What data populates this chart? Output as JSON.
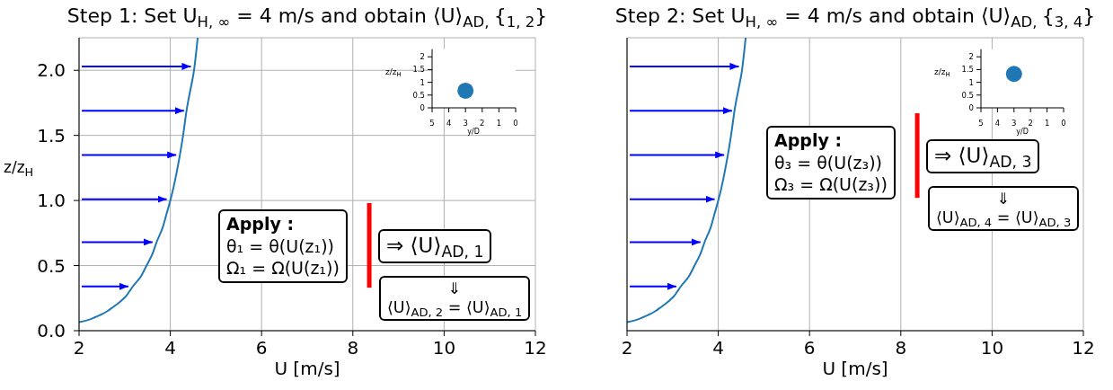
{
  "chart_data": [
    {
      "type": "line",
      "title": "Step 1: Set U$_{H, ∞}$ = 4 m/s and obtain ⟨U⟩$_{AD, }${$_{1, 2}$}",
      "xlabel": "U [m/s]",
      "ylabel": "z/z$_{H}$",
      "series": [
        {
          "color": "#1f77b4",
          "x": [
            2.0,
            2.18,
            2.33,
            2.46,
            2.62,
            2.72,
            2.82,
            2.94,
            3.04,
            3.1,
            3.18,
            3.36,
            3.48,
            3.62,
            3.7,
            3.84,
            3.92,
            4.0,
            4.07,
            4.13,
            4.21,
            4.28,
            4.36,
            4.44,
            4.52,
            4.57,
            4.6
          ],
          "values": [
            0.065,
            0.08,
            0.1,
            0.12,
            0.15,
            0.175,
            0.2,
            0.235,
            0.27,
            0.3,
            0.34,
            0.42,
            0.5,
            0.6,
            0.68,
            0.8,
            0.9,
            1.0,
            1.1,
            1.2,
            1.35,
            1.5,
            1.7,
            1.85,
            2.0,
            2.15,
            2.25
          ]
        },
        {
          "color": "#0000ff",
          "x": [
            2.06,
            3.08
          ],
          "values": [
            0.34,
            0.34
          ]
        },
        {
          "color": "#0000ff",
          "x": [
            2.06,
            3.61
          ],
          "values": [
            0.68,
            0.68
          ]
        },
        {
          "color": "#0000ff",
          "x": [
            2.06,
            3.92
          ],
          "values": [
            1.01,
            1.01
          ]
        },
        {
          "color": "#0000ff",
          "x": [
            2.06,
            4.13
          ],
          "values": [
            1.35,
            1.35
          ]
        },
        {
          "color": "#0000ff",
          "x": [
            2.06,
            4.3
          ],
          "values": [
            1.69,
            1.69
          ]
        },
        {
          "color": "#0000ff",
          "x": [
            2.06,
            4.45
          ],
          "values": [
            2.03,
            2.03
          ]
        },
        {
          "color": "#ff0000",
          "x": [
            8.36,
            8.36
          ],
          "values": [
            0.33,
            0.98
          ]
        }
      ],
      "xlim": [
        2,
        12
      ],
      "xticks": [
        2,
        4,
        6,
        8,
        10,
        12
      ],
      "ylim": [
        0,
        2.25
      ],
      "yticks": [
        {
          "value": 0,
          "label": "0.0"
        },
        {
          "value": 0.5,
          "label": "0.5"
        },
        {
          "value": 1,
          "label": "1.0"
        },
        {
          "value": 1.5,
          "label": "1.5"
        },
        {
          "value": 2,
          "label": "2.0"
        }
      ],
      "grid": true,
      "annotations": [
        "Apply :\nθ₁ = θ(U(z₁))\nΩ₁ = Ω(U(z₁))",
        "⇒ ⟨U⟩$_{AD, 1}$",
        "⇓\n⟨U⟩$_{AD, 2}$ = ⟨U⟩$_{AD, 1}$"
      ]
    },
    {
      "type": "scatter",
      "xlabel": "y/D",
      "ylabel": "z/z$_{H}$",
      "x": [
        3
      ],
      "values": [
        0.67
      ],
      "color": "#1f77b4",
      "marker": "circle",
      "xlim": [
        5,
        0
      ],
      "xticks": [
        5,
        4,
        3,
        2,
        1,
        0
      ],
      "ylim": [
        0,
        2.3
      ],
      "yticks": [
        0,
        0.5,
        1,
        1.5,
        2
      ]
    },
    {
      "type": "line",
      "title": "Step 2: Set U$_{H, ∞}$ = 4 m/s and obtain ⟨U⟩$_{AD, }${$_{3, 4}$}",
      "xlabel": "U [m/s]",
      "series": [
        {
          "color": "#1f77b4",
          "x": [
            2.0,
            2.18,
            2.33,
            2.46,
            2.62,
            2.72,
            2.82,
            2.94,
            3.04,
            3.1,
            3.18,
            3.36,
            3.48,
            3.62,
            3.7,
            3.84,
            3.92,
            4.0,
            4.07,
            4.13,
            4.21,
            4.28,
            4.36,
            4.44,
            4.52,
            4.57,
            4.6
          ],
          "values": [
            0.065,
            0.08,
            0.1,
            0.12,
            0.15,
            0.175,
            0.2,
            0.235,
            0.27,
            0.3,
            0.34,
            0.42,
            0.5,
            0.6,
            0.68,
            0.8,
            0.9,
            1.0,
            1.1,
            1.2,
            1.35,
            1.5,
            1.7,
            1.85,
            2.0,
            2.15,
            2.25
          ]
        },
        {
          "color": "#0000ff",
          "x": [
            2.06,
            3.08
          ],
          "values": [
            0.34,
            0.34
          ]
        },
        {
          "color": "#0000ff",
          "x": [
            2.06,
            3.61
          ],
          "values": [
            0.68,
            0.68
          ]
        },
        {
          "color": "#0000ff",
          "x": [
            2.06,
            3.92
          ],
          "values": [
            1.01,
            1.01
          ]
        },
        {
          "color": "#0000ff",
          "x": [
            2.06,
            4.13
          ],
          "values": [
            1.35,
            1.35
          ]
        },
        {
          "color": "#0000ff",
          "x": [
            2.06,
            4.3
          ],
          "values": [
            1.69,
            1.69
          ]
        },
        {
          "color": "#0000ff",
          "x": [
            2.06,
            4.45
          ],
          "values": [
            2.03,
            2.03
          ]
        },
        {
          "color": "#ff0000",
          "x": [
            8.36,
            8.36
          ],
          "values": [
            1.02,
            1.67
          ]
        }
      ],
      "xlim": [
        2,
        12
      ],
      "xticks": [
        2,
        4,
        6,
        8,
        10,
        12
      ],
      "ylim": [
        0,
        2.25
      ],
      "yticks": [
        0,
        0.5,
        1,
        1.5,
        2
      ],
      "grid": true,
      "tick_labels": "x",
      "annotations": [
        "Apply :\nθ₃ = θ(U(z₃))\nΩ₃ = Ω(U(z₃))",
        "⇒ ⟨U⟩$_{AD, 3}$",
        "⇓\n⟨U⟩$_{AD, 4}$ = ⟨U⟩$_{AD, 3}$"
      ]
    },
    {
      "type": "scatter",
      "xlabel": "y/D",
      "ylabel": "z/z$_{H}$",
      "x": [
        3
      ],
      "values": [
        1.33
      ],
      "color": "#1f77b4",
      "marker": "circle",
      "xlim": [
        5,
        0
      ],
      "xticks": [
        5,
        4,
        3,
        2,
        1,
        0
      ],
      "ylim": [
        0,
        2.3
      ],
      "yticks": [
        0,
        0.5,
        1,
        1.5,
        2
      ]
    }
  ]
}
